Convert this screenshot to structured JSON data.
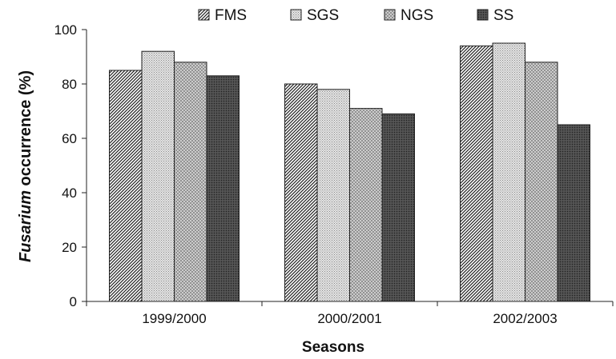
{
  "chart_data": {
    "type": "bar",
    "categories": [
      "1999/2000",
      "2000/2001",
      "2002/2003"
    ],
    "series": [
      {
        "name": "FMS",
        "values": [
          85,
          80,
          94
        ],
        "pattern": "diag-dense"
      },
      {
        "name": "SGS",
        "values": [
          92,
          78,
          95
        ],
        "pattern": "dots-light"
      },
      {
        "name": "NGS",
        "values": [
          88,
          71,
          88
        ],
        "pattern": "crosshatch"
      },
      {
        "name": "SS",
        "values": [
          83,
          69,
          65
        ],
        "pattern": "dark"
      }
    ],
    "ylabel_italic": "Fusarium",
    "ylabel_rest": " occurrence (%)",
    "xlabel": "Seasons",
    "ylim": [
      0,
      100
    ],
    "yticks": [
      0,
      20,
      40,
      60,
      80,
      100
    ],
    "legend_position": "top",
    "grid": false
  }
}
